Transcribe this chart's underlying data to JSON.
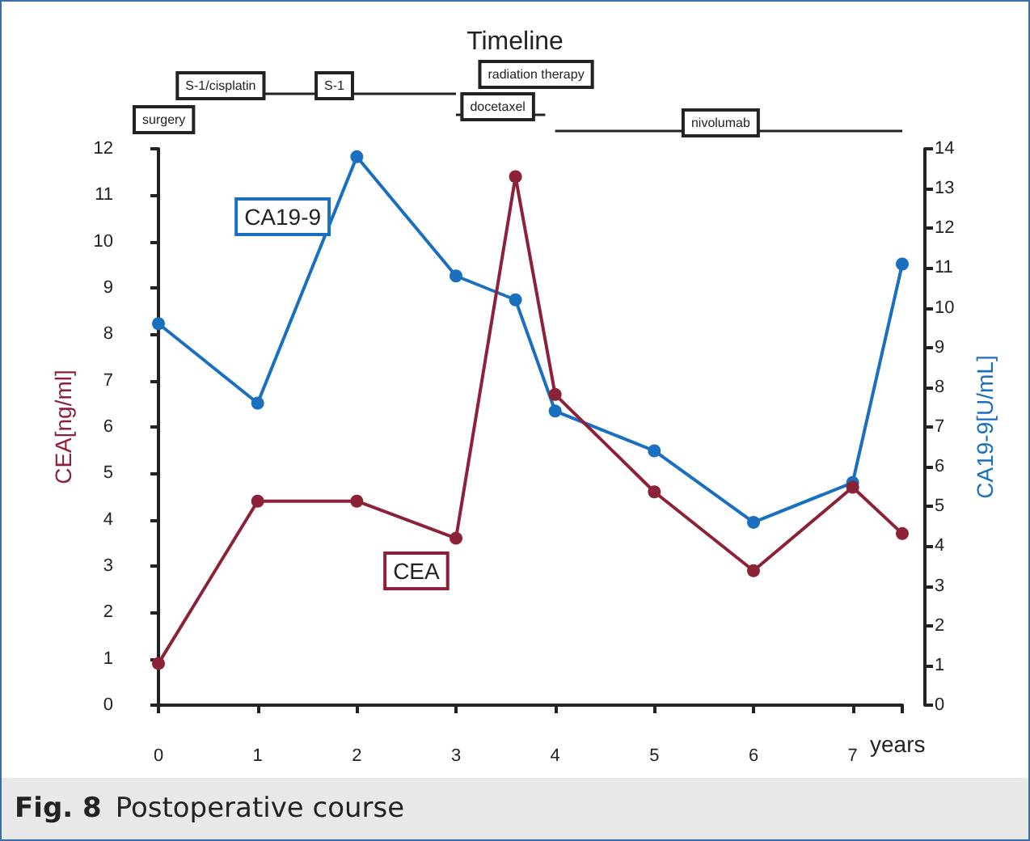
{
  "chart_data": {
    "type": "line",
    "title": "Timeline",
    "xlabel": "years",
    "ylabel": "CEA[ng/ml]",
    "y2label": "CA19-9[U/mL]",
    "annotations": [
      "surgery",
      "S-1/cisplatin",
      "S-1",
      "radiation therapy",
      "docetaxel",
      "nivolumab",
      "Fig. 8 Postoperative course"
    ],
    "x": [
      0,
      1,
      2,
      3,
      3.6,
      4,
      5,
      6,
      7,
      7.5
    ],
    "series": [
      {
        "name": "CEA",
        "color": "#8b2238",
        "values": [
          0.9,
          4.4,
          4.4,
          3.6,
          11.4,
          6.7,
          4.6,
          2.9,
          4.7,
          3.7
        ]
      },
      {
        "name": "CA19-9",
        "color": "#1a6fbf",
        "axis": "y2",
        "values": [
          9.6,
          7.6,
          13.8,
          10.8,
          10.2,
          7.4,
          6.4,
          4.6,
          5.6,
          11.1
        ]
      }
    ],
    "xlim": [
      0,
      7.5
    ],
    "xticks": [
      0,
      1,
      2,
      3,
      4,
      5,
      6,
      7,
      {
        "value": 7.5,
        "label": null
      }
    ],
    "ylim": [
      0,
      12
    ],
    "yticks": [
      0,
      1,
      2,
      3,
      4,
      5,
      6,
      7,
      8,
      9,
      10,
      11,
      12
    ],
    "y2lim": [
      0,
      14
    ],
    "y2ticks": [
      0,
      1,
      2,
      3,
      4,
      5,
      6,
      7,
      8,
      9,
      10,
      11,
      12,
      13,
      14
    ],
    "grid": false,
    "legend": false,
    "marker": "circle",
    "line_style": "solid"
  }
}
